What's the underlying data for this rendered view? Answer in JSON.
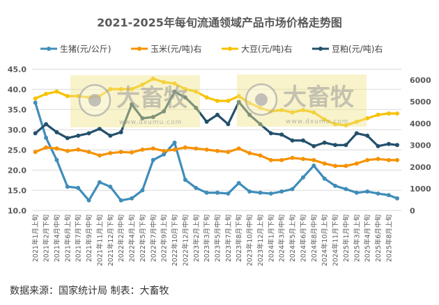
{
  "chart_data": {
    "type": "line",
    "title": "2021-2025年每旬流通领域产品市场价格走势图",
    "categories": [
      "2021年1月上旬",
      "2021年2月下旬",
      "2021年4月中旬",
      "2021年6月上旬",
      "2021年7月下旬",
      "2021年9月中旬",
      "2021年11月上旬",
      "2021年12月下旬",
      "2022年2月中旬",
      "2022年4月上旬",
      "2022年5月下旬",
      "2022年7月中旬",
      "2022年9月上旬",
      "2022年10月下旬",
      "2022年12月中旬",
      "2023年2月上旬",
      "2023年3月下旬",
      "2023年5月中旬",
      "2023年7月上旬",
      "2023年8月下旬",
      "2023年10月中旬",
      "2023年12月上旬",
      "2024年1月下旬",
      "2024年3月中旬",
      "2024年5月上旬",
      "2024年6月下旬",
      "2024年8月中旬",
      "2024年10月上旬",
      "2024年11月下旬",
      "2025年1月中旬",
      "2025年3月上旬",
      "2025年4月下旬",
      "2025年6月中旬",
      "2025年8月上旬",
      ""
    ],
    "left_axis": {
      "ylim": [
        10,
        45
      ],
      "ticks": [
        "45.0",
        "40.0",
        "35.0",
        "30.0",
        "25.0",
        "20.0",
        "15.0",
        "10.0"
      ]
    },
    "right_axis": {
      "ylim": [
        0,
        6500
      ],
      "ticks": [
        "6000",
        "5000",
        "4000",
        "3000",
        "2000",
        "1000",
        "0"
      ]
    },
    "grid": true,
    "legend_placement": "top",
    "series": [
      {
        "name": "生猪(元/公斤)",
        "axis": "left",
        "color": "#3F8DB9",
        "values": [
          36.7,
          28.0,
          22.5,
          15.9,
          15.6,
          12.5,
          17.0,
          15.9,
          12.5,
          13.0,
          15.0,
          22.5,
          23.9,
          26.8,
          17.6,
          15.6,
          14.4,
          14.4,
          14.2,
          16.8,
          14.7,
          14.4,
          14.2,
          14.7,
          15.3,
          18.2,
          21.1,
          17.9,
          16.1,
          15.3,
          14.4,
          14.7,
          14.2,
          13.8,
          13.0
        ]
      },
      {
        "name": "玉米(元/吨)右",
        "axis": "right",
        "color": "#F59200",
        "values": [
          2690,
          2900,
          2850,
          2740,
          2800,
          2690,
          2530,
          2640,
          2690,
          2670,
          2800,
          2850,
          2740,
          2800,
          2900,
          2850,
          2800,
          2740,
          2690,
          2850,
          2640,
          2530,
          2320,
          2320,
          2420,
          2370,
          2320,
          2160,
          2050,
          2050,
          2160,
          2320,
          2370,
          2320,
          2320
        ]
      },
      {
        "name": "大豆(元/吨)右",
        "axis": "right",
        "color": "#F8C200",
        "values": [
          5150,
          5360,
          5470,
          5260,
          5260,
          5200,
          5260,
          5580,
          5580,
          5580,
          5790,
          6060,
          5900,
          5840,
          5580,
          5470,
          5200,
          5040,
          5040,
          5260,
          4940,
          4720,
          4560,
          4620,
          4510,
          4620,
          4510,
          4190,
          3970,
          3920,
          4080,
          4240,
          4400,
          4460,
          4460
        ]
      },
      {
        "name": "豆粕(元/吨)右",
        "axis": "right",
        "color": "#23506B",
        "values": [
          3550,
          3970,
          3600,
          3330,
          3440,
          3550,
          3760,
          3440,
          3600,
          4880,
          4240,
          4300,
          4560,
          5460,
          5200,
          4720,
          4080,
          4400,
          3970,
          4990,
          4400,
          3970,
          3550,
          3490,
          3220,
          3220,
          2960,
          3120,
          3010,
          3010,
          3550,
          3440,
          2960,
          3060,
          3010
        ]
      }
    ]
  },
  "watermark": {
    "logo_text": "大畜牧",
    "url": "www.dxumu.com"
  },
  "source": "数据来源：国家统计局  制表：大畜牧"
}
